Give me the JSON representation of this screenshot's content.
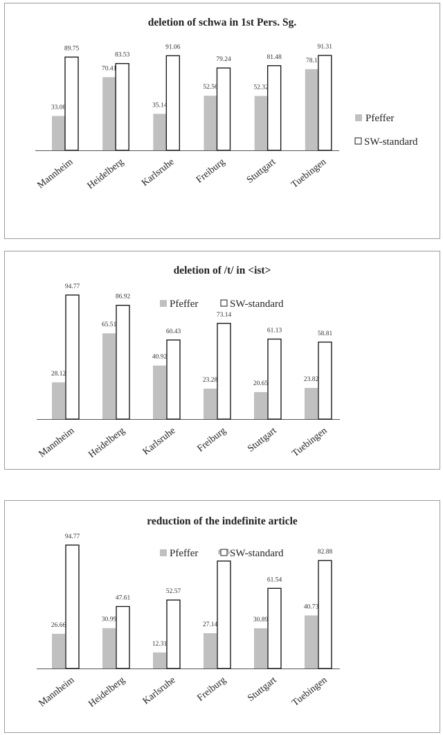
{
  "chart_data": [
    {
      "type": "bar",
      "title": "deletion of schwa in 1st Pers. Sg.",
      "xlabel": "",
      "ylabel": "",
      "ylim": [
        0,
        100
      ],
      "grid": false,
      "legend": "right",
      "categories": [
        "Mannheim",
        "Heidelberg",
        "Karlsruhe",
        "Freiburg",
        "Stuttgart",
        "Tuebingen"
      ],
      "series": [
        {
          "name": "Pfeffer",
          "values": [
            33.08,
            70.41,
            35.14,
            52.56,
            52.32,
            78.1
          ],
          "labels": [
            "33.08",
            "70.41",
            "35.14",
            "52.56",
            "52.32",
            "78.1"
          ]
        },
        {
          "name": "SW-standard",
          "values": [
            89.75,
            83.53,
            91.06,
            79.24,
            81.48,
            91.31
          ],
          "labels": [
            "89.75",
            "83.53",
            "91.06",
            "79.24",
            "81.48",
            "91.31"
          ]
        }
      ]
    },
    {
      "type": "bar",
      "title": "deletion of /t/ in <ist>",
      "xlabel": "",
      "ylabel": "",
      "ylim": [
        0,
        100
      ],
      "grid": false,
      "legend": "top",
      "categories": [
        "Mannheim",
        "Heidelberg",
        "Karlsruhe",
        "Freiburg",
        "Stuttgart",
        "Tuebingen"
      ],
      "series": [
        {
          "name": "Pfeffer",
          "values": [
            28.12,
            65.51,
            40.92,
            23.28,
            20.65,
            23.82
          ],
          "labels": [
            "28.12",
            "65.51",
            "40.92",
            "23.28",
            "20.65",
            "23.82"
          ]
        },
        {
          "name": "SW-standard",
          "values": [
            94.77,
            86.92,
            60.43,
            73.14,
            61.13,
            58.81
          ],
          "labels": [
            "94.77",
            "86.92",
            "60.43",
            "73.14",
            "61.13",
            "58.81"
          ]
        }
      ]
    },
    {
      "type": "bar",
      "title": "reduction of the indefinite article",
      "xlabel": "",
      "ylabel": "",
      "ylim": [
        0,
        100
      ],
      "grid": false,
      "legend": "top",
      "categories": [
        "Mannheim",
        "Heidelberg",
        "Karlsruhe",
        "Freiburg",
        "Stuttgart",
        "Tuebingen"
      ],
      "series": [
        {
          "name": "Pfeffer",
          "values": [
            26.66,
            30.99,
            12.31,
            27.14,
            30.89,
            40.73
          ],
          "labels": [
            "26.66",
            "30.99",
            "12.31",
            "27.14",
            "30.89",
            "40.73"
          ]
        },
        {
          "name": "SW-standard",
          "values": [
            94.77,
            47.61,
            52.57,
            82.5,
            61.54,
            82.88
          ],
          "labels": [
            "94.77",
            "47.61",
            "52.57",
            "82.5",
            "61.54",
            "82.88"
          ]
        }
      ]
    }
  ],
  "colors": {
    "pfeffer": "#c0c0c0",
    "sw_standard": "#ffffff",
    "bar_stroke": "#1a1a1a",
    "axis": "#555555"
  }
}
